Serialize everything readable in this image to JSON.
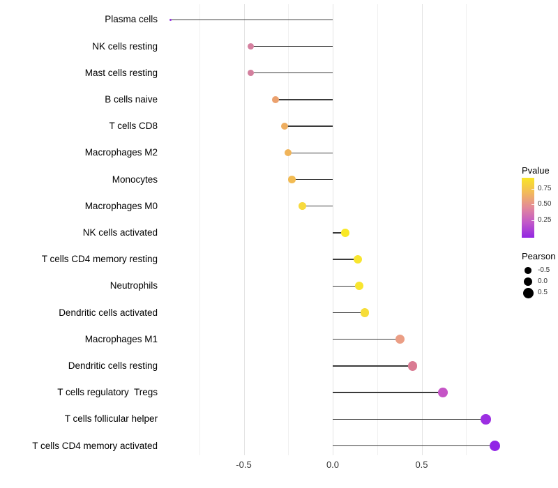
{
  "chart_data": {
    "type": "lollipop",
    "orientation": "horizontal",
    "title": "",
    "xlabel": "",
    "ylabel": "",
    "xlim": [
      -0.97,
      1.02
    ],
    "x_ticks": [
      {
        "value": -0.5,
        "label": "-0.5"
      },
      {
        "value": 0.0,
        "label": "0.0"
      },
      {
        "value": 0.5,
        "label": "0.5"
      }
    ],
    "gridlines_major": [
      -0.5,
      0.0,
      0.5
    ],
    "gridlines_minor": [
      -0.75,
      -0.25,
      0.25,
      0.75
    ],
    "grid": true,
    "color_encodes": "Pvalue",
    "size_encodes": "Pearson",
    "points": [
      {
        "label": "Plasma cells",
        "pearson": -0.91,
        "color": "#9330e0"
      },
      {
        "label": "NK cells resting",
        "pearson": -0.46,
        "color": "#d5809f"
      },
      {
        "label": "Mast cells resting",
        "pearson": -0.46,
        "color": "#d37f9d"
      },
      {
        "label": "B cells naive",
        "pearson": -0.32,
        "color": "#eba16e"
      },
      {
        "label": "T cells CD8",
        "pearson": -0.27,
        "color": "#eeae60"
      },
      {
        "label": "Macrophages M2",
        "pearson": -0.25,
        "color": "#f0b45a"
      },
      {
        "label": "Monocytes",
        "pearson": -0.23,
        "color": "#f2bb53"
      },
      {
        "label": "Macrophages M0",
        "pearson": -0.17,
        "color": "#f7da3e"
      },
      {
        "label": "NK cells activated",
        "pearson": 0.07,
        "color": "#f9e825"
      },
      {
        "label": "T cells CD4 memory resting",
        "pearson": 0.14,
        "color": "#f8e52f"
      },
      {
        "label": "Neutrophils",
        "pearson": 0.15,
        "color": "#f8e52f"
      },
      {
        "label": "Dendritic cells activated",
        "pearson": 0.18,
        "color": "#f6dd38"
      },
      {
        "label": "Macrophages M1",
        "pearson": 0.38,
        "color": "#eb9e85"
      },
      {
        "label": "Dendritic cells resting",
        "pearson": 0.45,
        "color": "#da7b93"
      },
      {
        "label": "T cells regulatory  Tregs",
        "pearson": 0.62,
        "color": "#c554c6"
      },
      {
        "label": "T cells follicular helper",
        "pearson": 0.86,
        "color": "#9c2fe2"
      },
      {
        "label": "T cells CD4 memory activated",
        "pearson": 0.91,
        "color": "#9124e6"
      }
    ],
    "legend_pvalue": {
      "title": "Pvalue",
      "tick_labels": [
        "0.75",
        "0.50",
        "0.25"
      ],
      "gradient_colors": [
        "#f9e626",
        "#f2b95b",
        "#e2889b",
        "#c158c9",
        "#9227e2"
      ]
    },
    "legend_pearson": {
      "title": "Pearson",
      "items": [
        {
          "label": "-0.5"
        },
        {
          "label": "0.0"
        },
        {
          "label": "0.5"
        }
      ]
    }
  }
}
